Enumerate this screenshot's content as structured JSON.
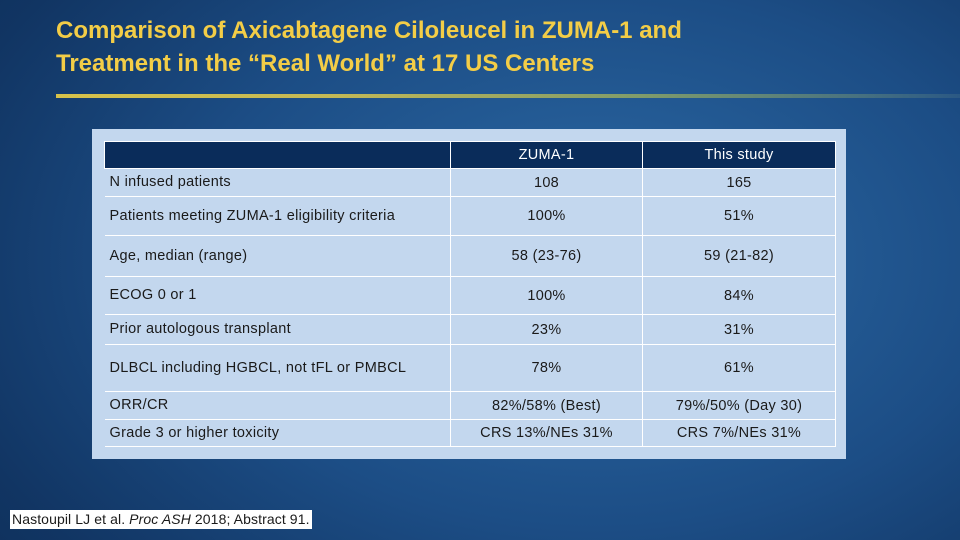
{
  "slide": {
    "title_line_1": "Comparison of Axicabtagene Ciloleucel in ZUMA-1 and",
    "title_line_2": "Treatment in the “Real World” at 17 US Centers"
  },
  "table": {
    "columns": [
      "",
      "ZUMA-1",
      "This study"
    ],
    "rows": [
      {
        "label": "N infused patients",
        "zuma1": "108",
        "this_study": "165"
      },
      {
        "label": "Patients meeting ZUMA-1 eligibility criteria",
        "zuma1": "100%",
        "this_study": "51%"
      },
      {
        "label": "Age, median (range)",
        "zuma1": "58 (23-76)",
        "this_study": "59 (21-82)"
      },
      {
        "label": "ECOG 0 or 1",
        "zuma1": "100%",
        "this_study": "84%"
      },
      {
        "label": "Prior autologous transplant",
        "zuma1": "23%",
        "this_study": "31%"
      },
      {
        "label": "DLBCL including HGBCL, not tFL or PMBCL",
        "zuma1": "78%",
        "this_study": "61%"
      },
      {
        "label": "ORR/CR",
        "zuma1": "82%/58% (Best)",
        "this_study": "79%/50% (Day 30)"
      },
      {
        "label": "Grade 3 or higher toxicity",
        "zuma1": "CRS 13%/NEs 31%",
        "this_study": "CRS 7%/NEs 31%"
      }
    ]
  },
  "citation": {
    "authors": "Nastoupil LJ et al. ",
    "journal": "Proc ASH",
    "details": " 2018; Abstract 91."
  },
  "colors": {
    "title": "#f3cd47",
    "header_bg": "#0a2c5a",
    "cell_bg": "#c3d7ee",
    "background": "#1c4d85"
  }
}
